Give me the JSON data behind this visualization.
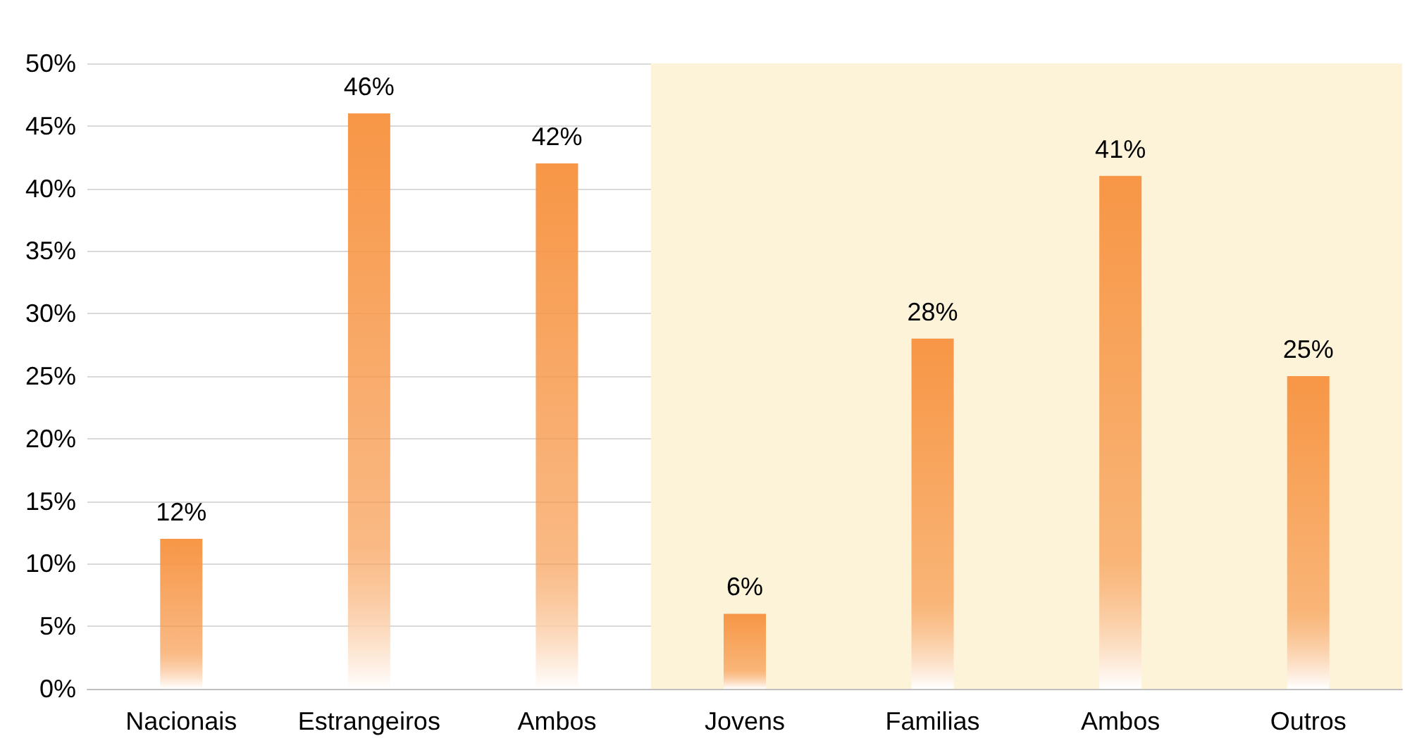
{
  "chart_data": {
    "type": "bar",
    "categories": [
      "Nacionais",
      "Estrangeiros",
      "Ambos",
      "Jovens",
      "Familias",
      "Ambos",
      "Outros"
    ],
    "values": [
      12,
      46,
      42,
      6,
      28,
      41,
      25
    ],
    "value_labels": [
      "12%",
      "46%",
      "42%",
      "6%",
      "28%",
      "41%",
      "25%"
    ],
    "color": "#f79646",
    "ylim": [
      0,
      50
    ],
    "yticks": [
      {
        "value": 0,
        "label": "0%"
      },
      {
        "value": 5,
        "label": "5%"
      },
      {
        "value": 10,
        "label": "10%"
      },
      {
        "value": 15,
        "label": "15%"
      },
      {
        "value": 20,
        "label": "20%"
      },
      {
        "value": 25,
        "label": "25%"
      },
      {
        "value": 30,
        "label": "30%"
      },
      {
        "value": 35,
        "label": "35%"
      },
      {
        "value": 40,
        "label": "40%"
      },
      {
        "value": 45,
        "label": "45%"
      },
      {
        "value": 50,
        "label": "50%"
      }
    ],
    "bands": [
      {
        "axis": "x",
        "from": "Jovens",
        "to": "Outros",
        "color": "#fdf3d9"
      }
    ],
    "grid": "y"
  }
}
